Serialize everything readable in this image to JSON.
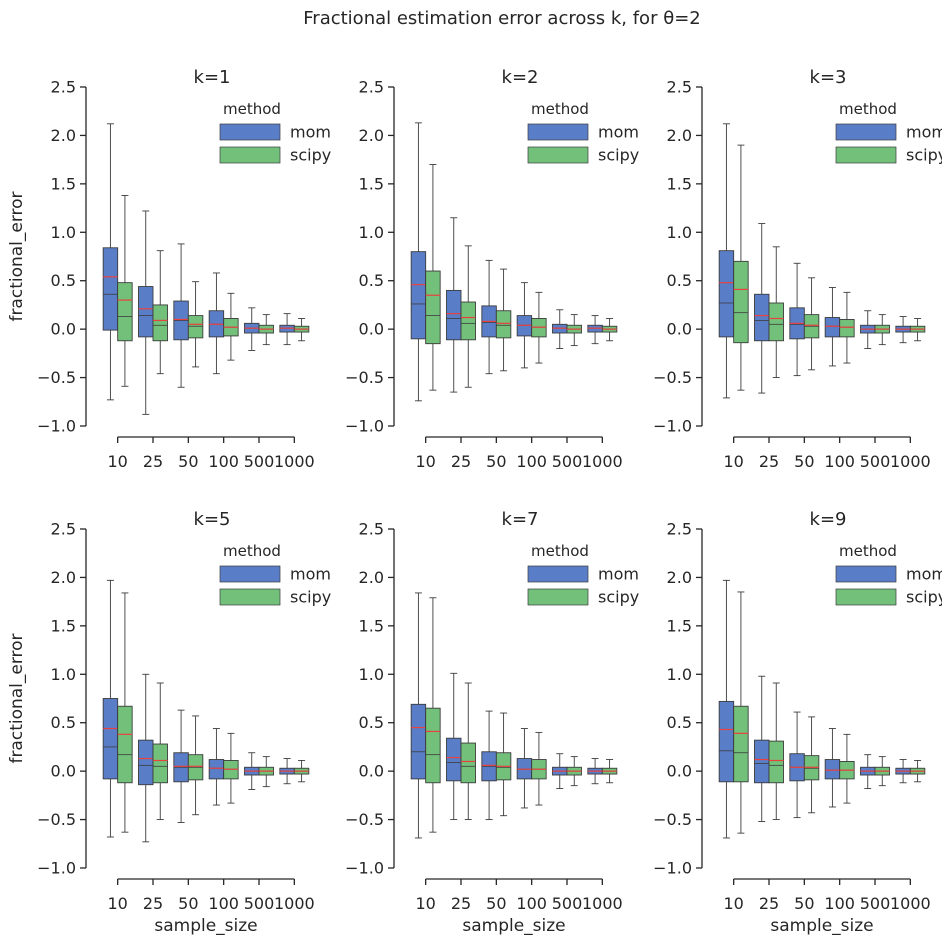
{
  "figure": {
    "title": "Fractional estimation error across k, for θ=2"
  },
  "colors": {
    "mom": "#5a7dc8",
    "scipy": "#72c07a",
    "median": "#e8423f",
    "mean": "#3c3c3c",
    "outline": "#3c3c3c",
    "axis": "#262626"
  },
  "chart_data": [
    {
      "type": "box",
      "title": "k=1",
      "xlabel": "",
      "ylabel": "fractional_error",
      "ylim": [
        -1.0,
        2.5
      ],
      "yticks": [
        "2.5",
        "2.0",
        "1.5",
        "1.0",
        "0.5",
        "0.0",
        "−0.5",
        "−1.0"
      ],
      "categories": [
        "10",
        "25",
        "50",
        "100",
        "500",
        "1000"
      ],
      "legend": {
        "title": "method",
        "entries": [
          "mom",
          "scipy"
        ],
        "position": "top-right"
      },
      "series": [
        {
          "name": "mom",
          "stats": [
            {
              "whislo": -0.73,
              "q1": -0.01,
              "med": 0.54,
              "mean": 0.36,
              "q3": 0.84,
              "whishi": 2.12
            },
            {
              "whislo": -0.88,
              "q1": -0.08,
              "med": 0.21,
              "mean": 0.14,
              "q3": 0.44,
              "whishi": 1.22
            },
            {
              "whislo": -0.6,
              "q1": -0.11,
              "med": 0.1,
              "mean": 0.09,
              "q3": 0.29,
              "whishi": 0.88
            },
            {
              "whislo": -0.46,
              "q1": -0.08,
              "med": 0.05,
              "mean": 0.05,
              "q3": 0.19,
              "whishi": 0.58
            },
            {
              "whislo": -0.22,
              "q1": -0.04,
              "med": 0.01,
              "mean": 0.01,
              "q3": 0.06,
              "whishi": 0.22
            },
            {
              "whislo": -0.16,
              "q1": -0.03,
              "med": 0.01,
              "mean": 0.01,
              "q3": 0.04,
              "whishi": 0.16
            }
          ]
        },
        {
          "name": "scipy",
          "stats": [
            {
              "whislo": -0.59,
              "q1": -0.12,
              "med": 0.3,
              "mean": 0.13,
              "q3": 0.48,
              "whishi": 1.38
            },
            {
              "whislo": -0.46,
              "q1": -0.12,
              "med": 0.09,
              "mean": 0.04,
              "q3": 0.25,
              "whishi": 0.81
            },
            {
              "whislo": -0.39,
              "q1": -0.09,
              "med": 0.05,
              "mean": 0.03,
              "q3": 0.14,
              "whishi": 0.49
            },
            {
              "whislo": -0.32,
              "q1": -0.07,
              "med": 0.02,
              "mean": 0.02,
              "q3": 0.11,
              "whishi": 0.37
            },
            {
              "whislo": -0.16,
              "q1": -0.04,
              "med": 0.0,
              "mean": 0.0,
              "q3": 0.04,
              "whishi": 0.15
            },
            {
              "whislo": -0.12,
              "q1": -0.03,
              "med": 0.0,
              "mean": 0.0,
              "q3": 0.03,
              "whishi": 0.11
            }
          ]
        }
      ]
    },
    {
      "type": "box",
      "title": "k=2",
      "xlabel": "",
      "ylabel": "",
      "ylim": [
        -1.0,
        2.5
      ],
      "yticks": [
        "2.5",
        "2.0",
        "1.5",
        "1.0",
        "0.5",
        "0.0",
        "−0.5",
        "−1.0"
      ],
      "categories": [
        "10",
        "25",
        "50",
        "100",
        "500",
        "1000"
      ],
      "legend": {
        "title": "method",
        "entries": [
          "mom",
          "scipy"
        ],
        "position": "top-right"
      },
      "series": [
        {
          "name": "mom",
          "stats": [
            {
              "whislo": -0.74,
              "q1": -0.1,
              "med": 0.46,
              "mean": 0.26,
              "q3": 0.8,
              "whishi": 2.13
            },
            {
              "whislo": -0.65,
              "q1": -0.11,
              "med": 0.16,
              "mean": 0.11,
              "q3": 0.4,
              "whishi": 1.15
            },
            {
              "whislo": -0.46,
              "q1": -0.08,
              "med": 0.08,
              "mean": 0.07,
              "q3": 0.24,
              "whishi": 0.71
            },
            {
              "whislo": -0.4,
              "q1": -0.07,
              "med": 0.04,
              "mean": 0.04,
              "q3": 0.14,
              "whishi": 0.48
            },
            {
              "whislo": -0.2,
              "q1": -0.04,
              "med": 0.01,
              "mean": 0.01,
              "q3": 0.05,
              "whishi": 0.2
            },
            {
              "whislo": -0.15,
              "q1": -0.03,
              "med": 0.01,
              "mean": 0.01,
              "q3": 0.04,
              "whishi": 0.14
            }
          ]
        },
        {
          "name": "scipy",
          "stats": [
            {
              "whislo": -0.63,
              "q1": -0.15,
              "med": 0.35,
              "mean": 0.14,
              "q3": 0.6,
              "whishi": 1.7
            },
            {
              "whislo": -0.6,
              "q1": -0.11,
              "med": 0.12,
              "mean": 0.06,
              "q3": 0.28,
              "whishi": 0.86
            },
            {
              "whislo": -0.43,
              "q1": -0.09,
              "med": 0.06,
              "mean": 0.04,
              "q3": 0.19,
              "whishi": 0.62
            },
            {
              "whislo": -0.35,
              "q1": -0.08,
              "med": 0.02,
              "mean": 0.02,
              "q3": 0.11,
              "whishi": 0.38
            },
            {
              "whislo": -0.17,
              "q1": -0.04,
              "med": 0.0,
              "mean": 0.0,
              "q3": 0.04,
              "whishi": 0.15
            },
            {
              "whislo": -0.12,
              "q1": -0.03,
              "med": 0.0,
              "mean": 0.0,
              "q3": 0.03,
              "whishi": 0.11
            }
          ]
        }
      ]
    },
    {
      "type": "box",
      "title": "k=3",
      "xlabel": "",
      "ylabel": "",
      "ylim": [
        -1.0,
        2.5
      ],
      "yticks": [
        "2.5",
        "2.0",
        "1.5",
        "1.0",
        "0.5",
        "0.0",
        "−0.5",
        "−1.0"
      ],
      "categories": [
        "10",
        "25",
        "50",
        "100",
        "500",
        "1000"
      ],
      "legend": {
        "title": "method",
        "entries": [
          "mom",
          "scipy"
        ],
        "position": "top-right"
      },
      "series": [
        {
          "name": "mom",
          "stats": [
            {
              "whislo": -0.71,
              "q1": -0.08,
              "med": 0.48,
              "mean": 0.27,
              "q3": 0.81,
              "whishi": 2.12
            },
            {
              "whislo": -0.66,
              "q1": -0.12,
              "med": 0.14,
              "mean": 0.09,
              "q3": 0.36,
              "whishi": 1.09
            },
            {
              "whislo": -0.48,
              "q1": -0.1,
              "med": 0.06,
              "mean": 0.05,
              "q3": 0.22,
              "whishi": 0.68
            },
            {
              "whislo": -0.38,
              "q1": -0.08,
              "med": 0.03,
              "mean": 0.03,
              "q3": 0.12,
              "whishi": 0.43
            },
            {
              "whislo": -0.2,
              "q1": -0.04,
              "med": 0.0,
              "mean": 0.0,
              "q3": 0.04,
              "whishi": 0.19
            },
            {
              "whislo": -0.14,
              "q1": -0.03,
              "med": 0.0,
              "mean": 0.0,
              "q3": 0.03,
              "whishi": 0.13
            }
          ]
        },
        {
          "name": "scipy",
          "stats": [
            {
              "whislo": -0.63,
              "q1": -0.14,
              "med": 0.41,
              "mean": 0.17,
              "q3": 0.7,
              "whishi": 1.9
            },
            {
              "whislo": -0.5,
              "q1": -0.12,
              "med": 0.11,
              "mean": 0.05,
              "q3": 0.27,
              "whishi": 0.85
            },
            {
              "whislo": -0.42,
              "q1": -0.09,
              "med": 0.04,
              "mean": 0.03,
              "q3": 0.15,
              "whishi": 0.53
            },
            {
              "whislo": -0.35,
              "q1": -0.08,
              "med": 0.02,
              "mean": 0.02,
              "q3": 0.1,
              "whishi": 0.38
            },
            {
              "whislo": -0.16,
              "q1": -0.04,
              "med": 0.0,
              "mean": 0.0,
              "q3": 0.04,
              "whishi": 0.15
            },
            {
              "whislo": -0.12,
              "q1": -0.03,
              "med": 0.0,
              "mean": 0.0,
              "q3": 0.03,
              "whishi": 0.11
            }
          ]
        }
      ]
    },
    {
      "type": "box",
      "title": "k=5",
      "xlabel": "sample_size",
      "ylabel": "fractional_error",
      "ylim": [
        -1.0,
        2.5
      ],
      "yticks": [
        "2.5",
        "2.0",
        "1.5",
        "1.0",
        "0.5",
        "0.0",
        "−0.5",
        "−1.0"
      ],
      "categories": [
        "10",
        "25",
        "50",
        "100",
        "500",
        "1000"
      ],
      "legend": {
        "title": "method",
        "entries": [
          "mom",
          "scipy"
        ],
        "position": "top-right"
      },
      "series": [
        {
          "name": "mom",
          "stats": [
            {
              "whislo": -0.68,
              "q1": -0.08,
              "med": 0.44,
              "mean": 0.25,
              "q3": 0.75,
              "whishi": 1.97
            },
            {
              "whislo": -0.73,
              "q1": -0.14,
              "med": 0.13,
              "mean": 0.06,
              "q3": 0.32,
              "whishi": 1.0
            },
            {
              "whislo": -0.53,
              "q1": -0.11,
              "med": 0.05,
              "mean": 0.04,
              "q3": 0.19,
              "whishi": 0.63
            },
            {
              "whislo": -0.35,
              "q1": -0.08,
              "med": 0.03,
              "mean": 0.03,
              "q3": 0.12,
              "whishi": 0.44
            },
            {
              "whislo": -0.19,
              "q1": -0.04,
              "med": 0.0,
              "mean": 0.0,
              "q3": 0.04,
              "whishi": 0.19
            },
            {
              "whislo": -0.13,
              "q1": -0.03,
              "med": 0.0,
              "mean": 0.0,
              "q3": 0.03,
              "whishi": 0.13
            }
          ]
        },
        {
          "name": "scipy",
          "stats": [
            {
              "whislo": -0.63,
              "q1": -0.12,
              "med": 0.38,
              "mean": 0.17,
              "q3": 0.67,
              "whishi": 1.84
            },
            {
              "whislo": -0.5,
              "q1": -0.12,
              "med": 0.11,
              "mean": 0.05,
              "q3": 0.28,
              "whishi": 0.91
            },
            {
              "whislo": -0.45,
              "q1": -0.09,
              "med": 0.05,
              "mean": 0.04,
              "q3": 0.17,
              "whishi": 0.57
            },
            {
              "whislo": -0.33,
              "q1": -0.08,
              "med": 0.02,
              "mean": 0.02,
              "q3": 0.11,
              "whishi": 0.39
            },
            {
              "whislo": -0.16,
              "q1": -0.04,
              "med": 0.0,
              "mean": 0.0,
              "q3": 0.04,
              "whishi": 0.15
            },
            {
              "whislo": -0.11,
              "q1": -0.03,
              "med": 0.0,
              "mean": 0.0,
              "q3": 0.03,
              "whishi": 0.11
            }
          ]
        }
      ]
    },
    {
      "type": "box",
      "title": "k=7",
      "xlabel": "sample_size",
      "ylabel": "",
      "ylim": [
        -1.0,
        2.5
      ],
      "yticks": [
        "2.5",
        "2.0",
        "1.5",
        "1.0",
        "0.5",
        "0.0",
        "−0.5",
        "−1.0"
      ],
      "categories": [
        "10",
        "25",
        "50",
        "100",
        "500",
        "1000"
      ],
      "legend": {
        "title": "method",
        "entries": [
          "mom",
          "scipy"
        ],
        "position": "top-right"
      },
      "series": [
        {
          "name": "mom",
          "stats": [
            {
              "whislo": -0.69,
              "q1": -0.08,
              "med": 0.45,
              "mean": 0.2,
              "q3": 0.69,
              "whishi": 1.84
            },
            {
              "whislo": -0.5,
              "q1": -0.1,
              "med": 0.14,
              "mean": 0.09,
              "q3": 0.34,
              "whishi": 1.01
            },
            {
              "whislo": -0.5,
              "q1": -0.1,
              "med": 0.06,
              "mean": 0.05,
              "q3": 0.2,
              "whishi": 0.62
            },
            {
              "whislo": -0.38,
              "q1": -0.08,
              "med": 0.02,
              "mean": 0.02,
              "q3": 0.13,
              "whishi": 0.44
            },
            {
              "whislo": -0.18,
              "q1": -0.04,
              "med": 0.0,
              "mean": 0.0,
              "q3": 0.04,
              "whishi": 0.18
            },
            {
              "whislo": -0.13,
              "q1": -0.03,
              "med": 0.0,
              "mean": 0.0,
              "q3": 0.03,
              "whishi": 0.13
            }
          ]
        },
        {
          "name": "scipy",
          "stats": [
            {
              "whislo": -0.63,
              "q1": -0.12,
              "med": 0.41,
              "mean": 0.17,
              "q3": 0.65,
              "whishi": 1.79
            },
            {
              "whislo": -0.5,
              "q1": -0.12,
              "med": 0.1,
              "mean": 0.05,
              "q3": 0.29,
              "whishi": 0.91
            },
            {
              "whislo": -0.46,
              "q1": -0.09,
              "med": 0.05,
              "mean": 0.04,
              "q3": 0.19,
              "whishi": 0.6
            },
            {
              "whislo": -0.35,
              "q1": -0.08,
              "med": 0.02,
              "mean": 0.02,
              "q3": 0.12,
              "whishi": 0.4
            },
            {
              "whislo": -0.15,
              "q1": -0.04,
              "med": 0.0,
              "mean": 0.0,
              "q3": 0.04,
              "whishi": 0.15
            },
            {
              "whislo": -0.12,
              "q1": -0.03,
              "med": 0.0,
              "mean": 0.0,
              "q3": 0.03,
              "whishi": 0.12
            }
          ]
        }
      ]
    },
    {
      "type": "box",
      "title": "k=9",
      "xlabel": "sample_size",
      "ylabel": "",
      "ylim": [
        -1.0,
        2.5
      ],
      "yticks": [
        "2.5",
        "2.0",
        "1.5",
        "1.0",
        "0.5",
        "0.0",
        "−0.5",
        "−1.0"
      ],
      "categories": [
        "10",
        "25",
        "50",
        "100",
        "500",
        "1000"
      ],
      "legend": {
        "title": "method",
        "entries": [
          "mom",
          "scipy"
        ],
        "position": "top-right"
      },
      "series": [
        {
          "name": "mom",
          "stats": [
            {
              "whislo": -0.69,
              "q1": -0.11,
              "med": 0.43,
              "mean": 0.21,
              "q3": 0.72,
              "whishi": 1.97
            },
            {
              "whislo": -0.52,
              "q1": -0.12,
              "med": 0.12,
              "mean": 0.08,
              "q3": 0.32,
              "whishi": 0.98
            },
            {
              "whislo": -0.48,
              "q1": -0.1,
              "med": 0.04,
              "mean": 0.04,
              "q3": 0.18,
              "whishi": 0.61
            },
            {
              "whislo": -0.37,
              "q1": -0.08,
              "med": 0.01,
              "mean": 0.01,
              "q3": 0.12,
              "whishi": 0.44
            },
            {
              "whislo": -0.18,
              "q1": -0.04,
              "med": 0.0,
              "mean": 0.0,
              "q3": 0.04,
              "whishi": 0.17
            },
            {
              "whislo": -0.12,
              "q1": -0.03,
              "med": 0.0,
              "mean": 0.0,
              "q3": 0.03,
              "whishi": 0.12
            }
          ]
        },
        {
          "name": "scipy",
          "stats": [
            {
              "whislo": -0.64,
              "q1": -0.11,
              "med": 0.39,
              "mean": 0.19,
              "q3": 0.67,
              "whishi": 1.85
            },
            {
              "whislo": -0.5,
              "q1": -0.12,
              "med": 0.11,
              "mean": 0.06,
              "q3": 0.31,
              "whishi": 0.91
            },
            {
              "whislo": -0.43,
              "q1": -0.09,
              "med": 0.04,
              "mean": 0.03,
              "q3": 0.16,
              "whishi": 0.56
            },
            {
              "whislo": -0.33,
              "q1": -0.08,
              "med": 0.01,
              "mean": 0.01,
              "q3": 0.1,
              "whishi": 0.38
            },
            {
              "whislo": -0.15,
              "q1": -0.04,
              "med": 0.0,
              "mean": 0.0,
              "q3": 0.04,
              "whishi": 0.15
            },
            {
              "whislo": -0.11,
              "q1": -0.03,
              "med": 0.0,
              "mean": 0.0,
              "q3": 0.03,
              "whishi": 0.11
            }
          ]
        }
      ]
    }
  ]
}
